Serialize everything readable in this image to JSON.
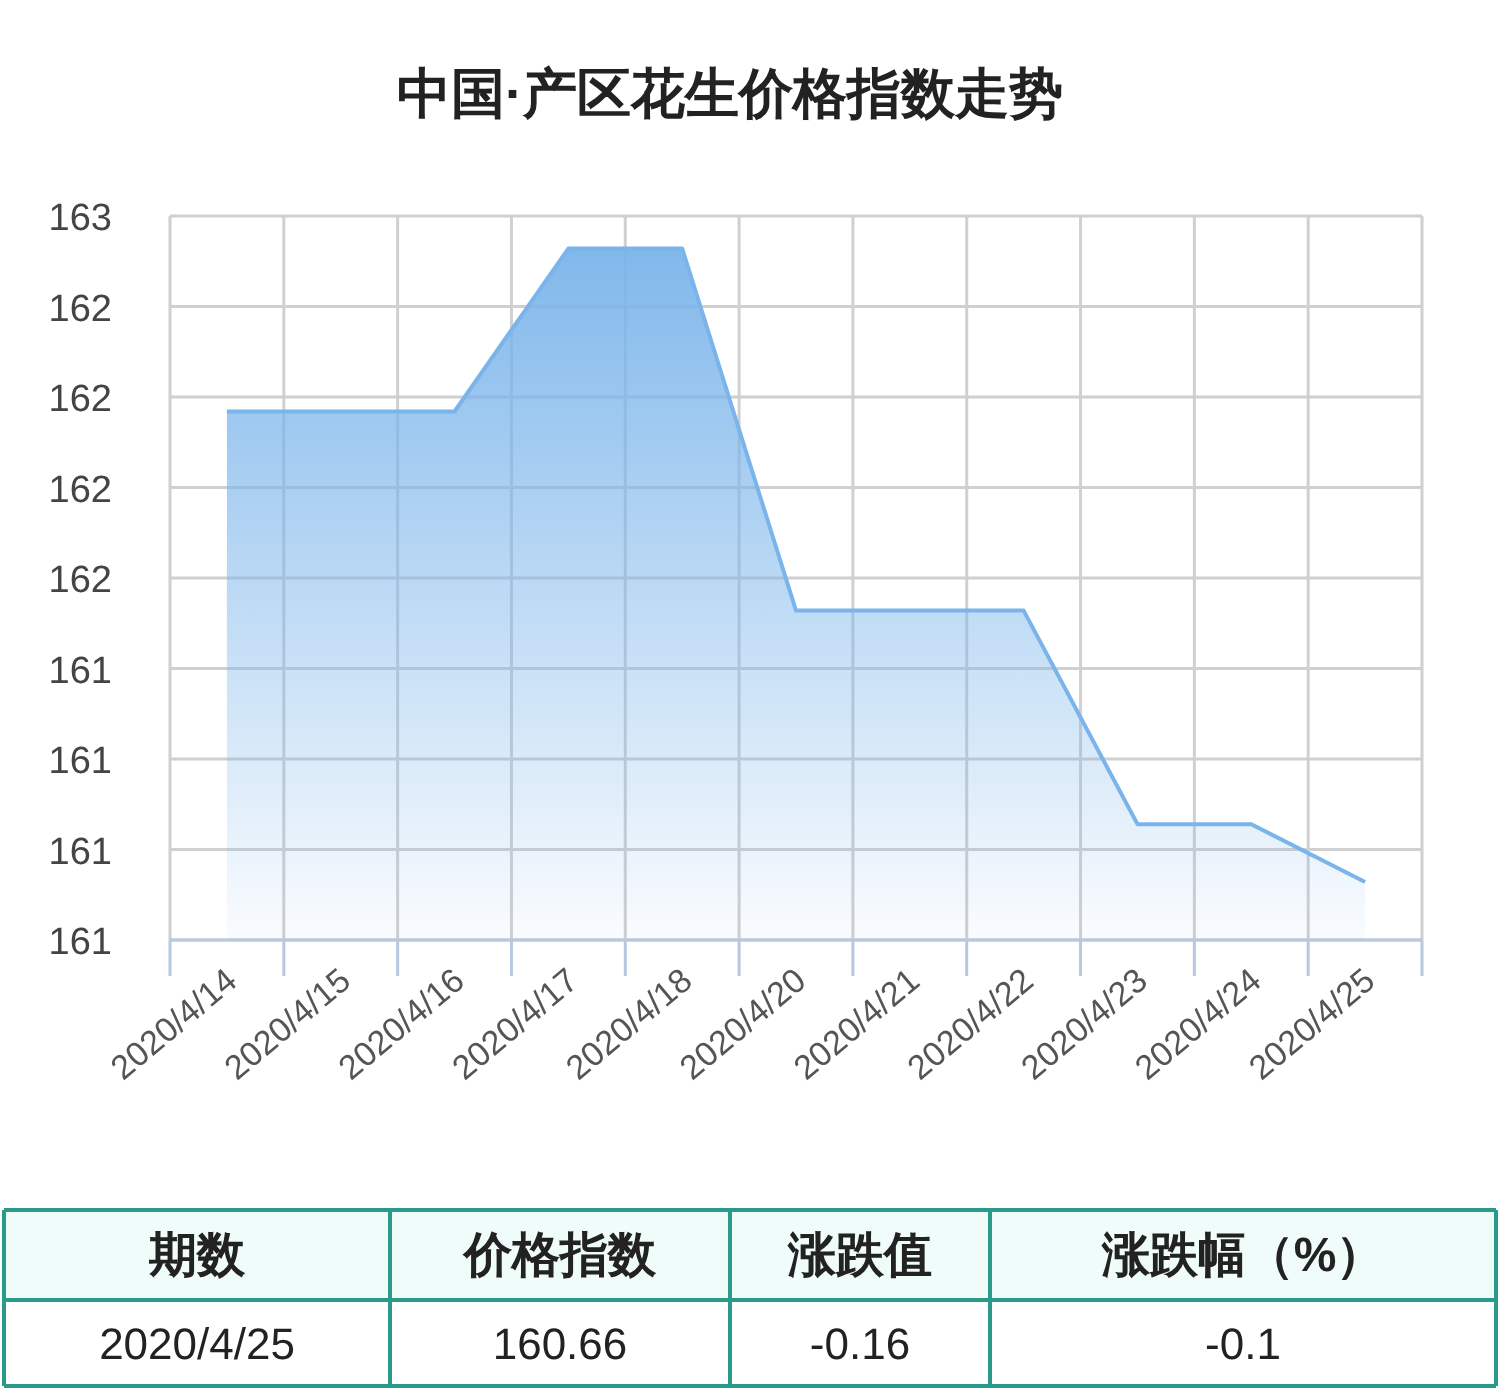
{
  "chart_data": {
    "type": "area",
    "title": "中国·产区花生价格指数走势",
    "categories": [
      "2020/4/14",
      "2020/4/15",
      "2020/4/16",
      "2020/4/17",
      "2020/4/18",
      "2020/4/20",
      "2020/4/21",
      "2020/4/22",
      "2020/4/23",
      "2020/4/24",
      "2020/4/25"
    ],
    "values": [
      161.96,
      161.96,
      161.96,
      162.41,
      162.41,
      161.41,
      161.41,
      161.41,
      160.82,
      160.82,
      160.66
    ],
    "color": "#7ab4ea",
    "ylim": [
      160.5,
      162.5
    ],
    "yticks": [
      {
        "value": 160.5,
        "label": "161"
      },
      {
        "value": 160.75,
        "label": "161"
      },
      {
        "value": 161,
        "label": "161"
      },
      {
        "value": 161.25,
        "label": "161"
      },
      {
        "value": 161.5,
        "label": "162"
      },
      {
        "value": 161.75,
        "label": "162"
      },
      {
        "value": 162,
        "label": "162"
      },
      {
        "value": 162.25,
        "label": "162"
      },
      {
        "value": 162.5,
        "label": "163"
      }
    ],
    "grid": true,
    "annotations": [
      "期数",
      "价格指数",
      "涨跌值",
      "涨跌幅（%）",
      "2020/4/25",
      "160.66",
      "-0.16",
      "-0.1"
    ]
  }
}
